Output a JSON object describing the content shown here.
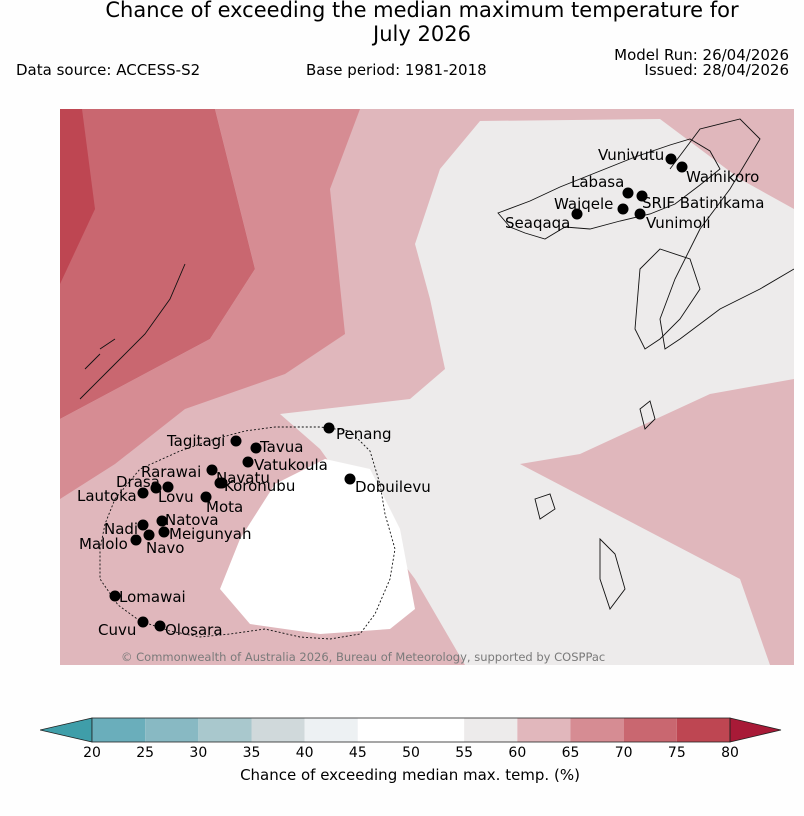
{
  "header": {
    "title_line1": "Chance of exceeding the median maximum temperature for",
    "title_line2": "July 2026",
    "data_source": "Data source: ACCESS-S2",
    "base_period": "Base period: 1981-2018",
    "model_run": "Model Run: 26/04/2026",
    "issued": "Issued: 28/04/2026"
  },
  "map": {
    "copyright": "© Commonwealth of Australia 2026, Bureau of Meteorology, supported by COSPPac",
    "places": [
      {
        "name": "Vunivutu"
      },
      {
        "name": "Wainikoro"
      },
      {
        "name": "Labasa"
      },
      {
        "name": "SRIF Batinikama"
      },
      {
        "name": "Waiqele"
      },
      {
        "name": "Seaqaqa"
      },
      {
        "name": "Vunimoli"
      },
      {
        "name": "Penang"
      },
      {
        "name": "Tagitagi"
      },
      {
        "name": "Tavua"
      },
      {
        "name": "Vatukoula"
      },
      {
        "name": "Rarawai"
      },
      {
        "name": "Navatu"
      },
      {
        "name": "Koronubu"
      },
      {
        "name": "Drasa"
      },
      {
        "name": "Lovu"
      },
      {
        "name": "Lautoka"
      },
      {
        "name": "Mota"
      },
      {
        "name": "Dobuilevu"
      },
      {
        "name": "Natova"
      },
      {
        "name": "Nadi"
      },
      {
        "name": "Meigunyah"
      },
      {
        "name": "Malolo"
      },
      {
        "name": "Navo"
      },
      {
        "name": "Lomawai"
      },
      {
        "name": "Cuvu"
      },
      {
        "name": "Olosara"
      }
    ]
  },
  "colorbar": {
    "label": "Chance of exceeding median max. temp. (%)",
    "ticks": [
      "20",
      "25",
      "30",
      "35",
      "40",
      "45",
      "50",
      "55",
      "60",
      "65",
      "70",
      "75",
      "80"
    ],
    "colors": [
      "#6aaebb",
      "#88b9c3",
      "#a9c8cd",
      "#d0d9db",
      "#edf1f3",
      "#ffffff",
      "#ffffff",
      "#edebeb",
      "#e1b7bc",
      "#d68c93",
      "#c96770",
      "#be4652"
    ],
    "under_color": "#3f9ea9",
    "over_color": "#a81a37"
  }
}
